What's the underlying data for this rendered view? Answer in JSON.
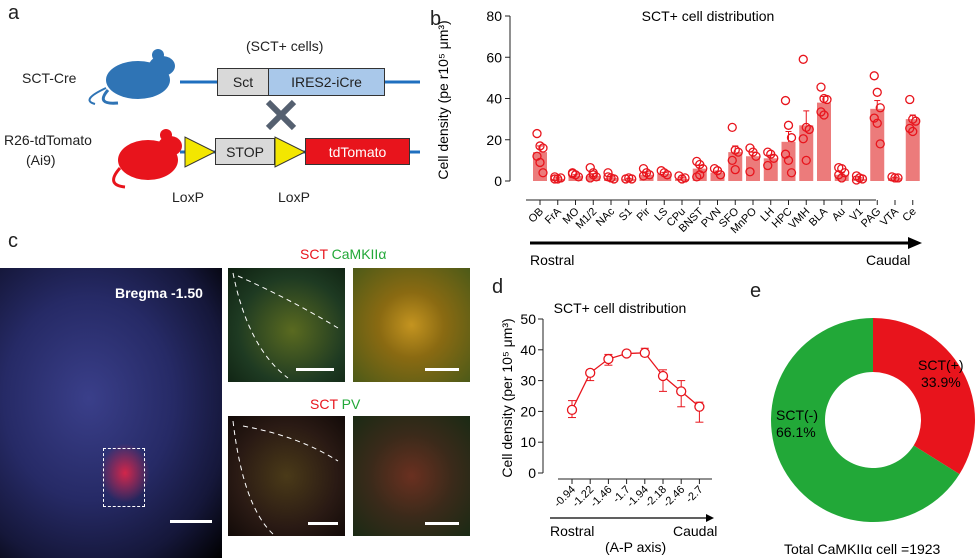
{
  "panels": {
    "a": "a",
    "b": "b",
    "c": "c",
    "d": "d",
    "e": "e"
  },
  "panel_a": {
    "sct_cells": "(SCT+ cells)",
    "sct_cre": "SCT-Cre",
    "sct_box": "Sct",
    "ires_box": "IRES2-iCre",
    "r26_line1": "R26-tdTomato",
    "r26_line2": "(Ai9)",
    "stop_box": "STOP",
    "tdtomato_box": "tdTomato",
    "loxp1": "LoxP",
    "loxp2": "LoxP",
    "colors": {
      "blue_mouse": "#2f74b5",
      "red_mouse": "#e8141c",
      "line": "#1f6fbf",
      "sct": "#d9d9d9",
      "ires": "#a9c8ea",
      "loxp": "#f3e600",
      "tdtomato": "#e8141c"
    }
  },
  "panel_c": {
    "bregma": "Bregma -1.50",
    "row1_sct": "SCT",
    "row1_marker": "CaMKIIα",
    "row2_sct": "SCT",
    "row2_marker": "PV"
  },
  "chart_data": [
    {
      "type": "bar",
      "title": "SCT+ cell distribution",
      "ylabel": "Cell density (pe r10⁵ μm³)",
      "ylim": [
        0,
        80
      ],
      "yticks": [
        "0",
        "20",
        "40",
        "60",
        "80"
      ],
      "categories": [
        "OB",
        "FrA",
        "MO",
        "M1/2",
        "NAc",
        "S1",
        "Pir",
        "LS",
        "CPu",
        "BNST",
        "PVN",
        "SFO",
        "MnPO",
        "LH",
        "HPC",
        "VMH",
        "BLA",
        "Au",
        "V1",
        "PAG",
        "VTA",
        "Ce"
      ],
      "values": [
        14,
        1,
        2.5,
        2.5,
        1.5,
        1,
        3,
        3.5,
        1,
        6,
        4,
        14,
        12,
        11,
        19,
        27,
        38,
        3,
        1,
        35,
        1.5,
        30
      ],
      "errors": [
        3,
        0.5,
        0.5,
        1,
        0.5,
        0.3,
        0.8,
        0.7,
        0.5,
        1.5,
        0.8,
        3,
        2,
        1.5,
        5,
        7,
        3,
        1,
        0.5,
        4,
        0.3,
        2
      ],
      "points": [
        [
          23,
          17,
          16,
          12,
          9,
          4
        ],
        [
          2,
          1,
          1.5,
          1
        ],
        [
          4,
          3,
          2,
          3.5
        ],
        [
          6.5,
          4,
          2,
          1.5,
          3
        ],
        [
          4,
          1.5,
          1,
          2
        ],
        [
          1,
          1.5,
          1
        ],
        [
          6,
          4,
          3,
          2.5
        ],
        [
          5,
          4,
          3
        ],
        [
          2.5,
          1,
          1.5
        ],
        [
          9.5,
          8,
          6,
          2,
          3
        ],
        [
          6,
          5,
          3
        ],
        [
          26,
          15,
          14,
          10,
          5.5
        ],
        [
          16,
          14,
          12,
          4.5
        ],
        [
          14,
          13,
          11,
          7.5
        ],
        [
          39,
          27,
          21,
          13,
          10,
          4
        ],
        [
          59,
          26,
          25,
          20.5,
          10
        ],
        [
          45.5,
          40,
          39.5,
          33.5,
          32
        ],
        [
          6.5,
          6,
          4,
          3,
          1.5
        ],
        [
          2.5,
          1.5,
          1,
          0.5
        ],
        [
          51,
          43,
          35.5,
          30.5,
          28,
          18
        ],
        [
          2,
          1.5,
          1.5
        ],
        [
          39.5,
          30,
          29,
          25.5,
          24
        ]
      ],
      "arrow_left": "Rostral",
      "arrow_right": "Caudal",
      "color": "#ec7b7b",
      "point_color": "#e8141c"
    },
    {
      "type": "line",
      "title": "SCT+ cell distribution",
      "ylabel": "Cell density (per 10⁵ μm³)",
      "ylim": [
        0,
        50
      ],
      "yticks": [
        "0",
        "10",
        "20",
        "30",
        "40",
        "50"
      ],
      "x": [
        "-0.94",
        "-1.22",
        "-1.46",
        "-1.7",
        "-1.94",
        "-2.18",
        "-2.46",
        "-2.7"
      ],
      "values": [
        20.5,
        32.5,
        37,
        38.8,
        39,
        31.5,
        26.5,
        21.5
      ],
      "err_low": [
        18,
        30,
        35,
        38.3,
        38,
        26.5,
        21.5,
        16.5
      ],
      "err_high": [
        23.5,
        33.5,
        38.5,
        39.3,
        40.5,
        33.5,
        30,
        23
      ],
      "arrow_left": "Rostral",
      "arrow_right": "Caudal",
      "xlabel": "(A-P axis)",
      "color": "#e8141c"
    },
    {
      "type": "pie",
      "labels": [
        "SCT(+)",
        "SCT(-)"
      ],
      "percent_labels": [
        "33.9%",
        "66.1%"
      ],
      "values": [
        33.9,
        66.1
      ],
      "colors": [
        "#e8141c",
        "#22a838"
      ],
      "caption": "Total CaMKIIα cell =1923"
    }
  ]
}
